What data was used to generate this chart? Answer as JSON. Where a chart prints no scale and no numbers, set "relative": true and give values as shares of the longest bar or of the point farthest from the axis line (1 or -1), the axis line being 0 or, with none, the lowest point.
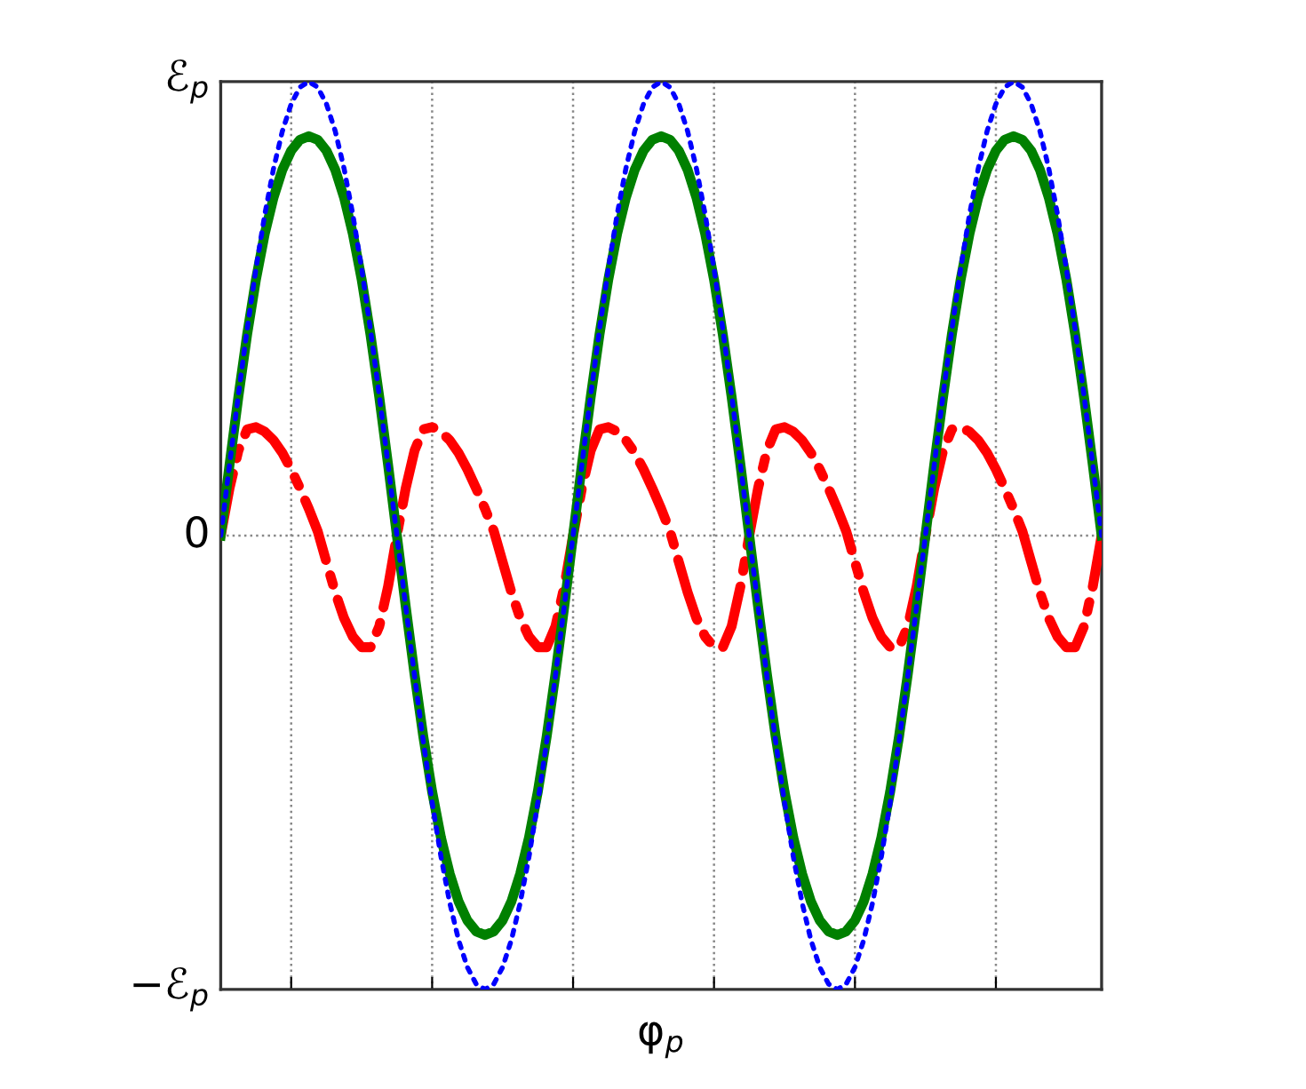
{
  "chart_data": {
    "type": "line",
    "xlabel": "φ$_{p}$",
    "relative": true,
    "annotations": [
      "ℰ$_{p}$",
      "0",
      "−ℰ$_{p}$"
    ],
    "grid": true,
    "marker": "none",
    "categories": [
      null,
      null,
      null,
      null,
      null,
      null,
      null,
      null,
      null,
      null,
      null,
      null,
      null,
      null,
      null,
      null,
      null,
      null,
      null,
      null,
      null,
      null,
      null,
      null,
      null,
      null,
      null,
      null,
      null,
      null,
      null,
      null,
      null,
      null,
      null,
      null,
      null,
      null,
      null,
      null,
      null,
      null,
      null,
      null,
      null,
      null,
      null,
      null,
      null,
      null,
      null,
      null,
      null,
      null,
      null,
      null,
      null,
      null,
      null,
      null,
      null,
      null,
      null,
      null,
      null,
      null,
      null,
      null,
      null,
      null,
      null,
      null,
      null,
      null,
      null,
      null,
      null,
      null,
      null,
      null,
      null,
      null,
      null,
      null,
      null,
      null,
      null,
      null,
      null,
      null,
      null,
      null,
      null,
      null,
      null,
      null,
      null,
      null,
      null,
      null,
      null
    ],
    "series": [
      {
        "color": "#0000ff",
        "line_style": "dotted",
        "values": [
          0,
          0.156,
          0.309,
          0.454,
          0.588,
          0.707,
          0.809,
          0.891,
          0.951,
          0.988,
          1,
          0.988,
          0.951,
          0.891,
          0.809,
          0.707,
          0.588,
          0.454,
          0.309,
          0.156,
          0,
          -0.156,
          -0.309,
          -0.454,
          -0.588,
          -0.707,
          -0.809,
          -0.891,
          -0.951,
          -0.988,
          -1,
          -0.988,
          -0.951,
          -0.891,
          -0.809,
          -0.707,
          -0.588,
          -0.454,
          -0.309,
          -0.156,
          0,
          0.156,
          0.309,
          0.454,
          0.588,
          0.707,
          0.809,
          0.891,
          0.951,
          0.988,
          1,
          0.988,
          0.951,
          0.891,
          0.809,
          0.707,
          0.588,
          0.454,
          0.309,
          0.156,
          0,
          -0.156,
          -0.309,
          -0.454,
          -0.588,
          -0.707,
          -0.809,
          -0.891,
          -0.951,
          -0.988,
          -1,
          -0.988,
          -0.951,
          -0.891,
          -0.809,
          -0.707,
          -0.588,
          -0.454,
          -0.309,
          -0.156,
          0,
          0.156,
          0.309,
          0.454,
          0.588,
          0.707,
          0.809,
          0.891,
          0.951,
          0.988,
          1,
          0.988,
          0.951,
          0.891,
          0.809,
          0.707,
          0.588,
          0.454,
          0.309,
          0.156,
          0
        ]
      },
      {
        "color": "#008000",
        "line_style": "solid",
        "values": [
          0,
          0.156,
          0.305,
          0.443,
          0.564,
          0.665,
          0.745,
          0.806,
          0.848,
          0.872,
          0.88,
          0.872,
          0.848,
          0.806,
          0.745,
          0.665,
          0.564,
          0.443,
          0.305,
          0.156,
          0,
          -0.156,
          -0.305,
          -0.443,
          -0.564,
          -0.665,
          -0.745,
          -0.806,
          -0.848,
          -0.872,
          -0.88,
          -0.872,
          -0.848,
          -0.806,
          -0.745,
          -0.665,
          -0.564,
          -0.443,
          -0.305,
          -0.156,
          0,
          0.156,
          0.305,
          0.443,
          0.564,
          0.665,
          0.745,
          0.806,
          0.848,
          0.872,
          0.88,
          0.872,
          0.848,
          0.806,
          0.745,
          0.665,
          0.564,
          0.443,
          0.305,
          0.156,
          0,
          -0.156,
          -0.305,
          -0.443,
          -0.564,
          -0.665,
          -0.745,
          -0.806,
          -0.848,
          -0.872,
          -0.88,
          -0.872,
          -0.848,
          -0.806,
          -0.745,
          -0.665,
          -0.564,
          -0.443,
          -0.305,
          -0.156,
          0,
          0.156,
          0.305,
          0.443,
          0.564,
          0.665,
          0.745,
          0.806,
          0.848,
          0.872,
          0.88,
          0.872,
          0.848,
          0.806,
          0.745,
          0.665,
          0.564,
          0.443,
          0.305,
          0.156,
          0
        ]
      },
      {
        "color": "#ff0000",
        "line_style": "dashdot",
        "values": [
          0,
          0.104,
          0.187,
          0.234,
          0.239,
          0.229,
          0.21,
          0.182,
          0.146,
          0.104,
          0.059,
          0.01,
          -0.058,
          -0.125,
          -0.182,
          -0.223,
          -0.246,
          -0.246,
          -0.2,
          -0.112,
          0,
          0.104,
          0.187,
          0.234,
          0.239,
          0.229,
          0.21,
          0.182,
          0.146,
          0.104,
          0.059,
          0.01,
          -0.058,
          -0.125,
          -0.182,
          -0.223,
          -0.246,
          -0.246,
          -0.2,
          -0.112,
          0,
          0.104,
          0.187,
          0.234,
          0.239,
          0.229,
          0.21,
          0.182,
          0.146,
          0.104,
          0.059,
          0.01,
          -0.058,
          -0.125,
          -0.182,
          -0.223,
          -0.246,
          -0.246,
          -0.2,
          -0.112,
          0,
          0.104,
          0.187,
          0.234,
          0.239,
          0.229,
          0.21,
          0.182,
          0.146,
          0.104,
          0.059,
          0.01,
          -0.058,
          -0.125,
          -0.182,
          -0.223,
          -0.246,
          -0.246,
          -0.2,
          -0.112,
          0,
          0.104,
          0.187,
          0.234,
          0.239,
          0.229,
          0.21,
          0.182,
          0.146,
          0.104,
          0.059,
          0.01,
          -0.058,
          -0.125,
          -0.182,
          -0.223,
          -0.246,
          -0.246,
          -0.2,
          -0.112,
          0
        ]
      }
    ]
  }
}
